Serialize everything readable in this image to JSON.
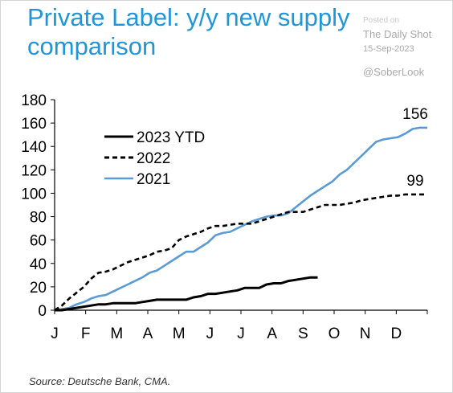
{
  "title": "Private Label: y/y new supply comparison",
  "watermark": {
    "faint": "Posted on",
    "name": "The Daily Shot",
    "date": "15-Sep-2023",
    "handle": "@SoberLook"
  },
  "source": "Source: Deutsche Bank, CMA.",
  "chart_data": {
    "type": "line",
    "title": "Private Label: y/y new supply comparison",
    "xlabel": "",
    "ylabel": "",
    "ylim": [
      0,
      180
    ],
    "yticks": [
      0,
      20,
      40,
      60,
      80,
      100,
      120,
      140,
      160,
      180
    ],
    "month_labels": [
      "J",
      "F",
      "M",
      "A",
      "M",
      "J",
      "J",
      "A",
      "S",
      "O",
      "N",
      "D"
    ],
    "x_unit": "week of year",
    "xlim": [
      1,
      52
    ],
    "grid": false,
    "legend_position": "top-left",
    "end_labels": [
      {
        "series": "2021",
        "text": "156"
      },
      {
        "series": "2022",
        "text": "99"
      }
    ],
    "series": [
      {
        "name": "2023 YTD",
        "color": "#000000",
        "style": "solid",
        "x": [
          1,
          2,
          3,
          4,
          5,
          6,
          7,
          8,
          9,
          10,
          11,
          12,
          13,
          14,
          15,
          16,
          17,
          18,
          19,
          20,
          21,
          22,
          23,
          24,
          25,
          26,
          27,
          28,
          29,
          30,
          31,
          32,
          33,
          34,
          35,
          36,
          37
        ],
        "y": [
          0,
          0,
          1,
          2,
          3,
          4,
          5,
          5,
          6,
          6,
          6,
          6,
          7,
          8,
          9,
          9,
          9,
          9,
          9,
          11,
          12,
          14,
          14,
          15,
          16,
          17,
          19,
          19,
          19,
          22,
          23,
          23,
          25,
          26,
          27,
          28,
          28
        ]
      },
      {
        "name": "2022",
        "color": "#000000",
        "style": "dashed",
        "x": [
          1,
          2,
          3,
          4,
          5,
          6,
          7,
          8,
          9,
          10,
          11,
          12,
          13,
          14,
          15,
          16,
          17,
          18,
          19,
          20,
          21,
          22,
          23,
          24,
          25,
          26,
          27,
          28,
          29,
          30,
          31,
          32,
          33,
          34,
          35,
          36,
          37,
          38,
          39,
          40,
          41,
          42,
          43,
          44,
          45,
          46,
          47,
          48,
          49,
          50,
          51,
          52
        ],
        "y": [
          0,
          4,
          10,
          15,
          20,
          27,
          32,
          33,
          35,
          38,
          41,
          43,
          45,
          47,
          50,
          51,
          53,
          60,
          63,
          65,
          67,
          70,
          72,
          72,
          73,
          74,
          74,
          74,
          76,
          78,
          80,
          82,
          84,
          84,
          84,
          86,
          88,
          90,
          90,
          90,
          91,
          92,
          94,
          95,
          96,
          97,
          98,
          98,
          99,
          99,
          99,
          99
        ]
      },
      {
        "name": "2021",
        "color": "#5b9bd5",
        "style": "solid",
        "x": [
          1,
          2,
          3,
          4,
          5,
          6,
          7,
          8,
          9,
          10,
          11,
          12,
          13,
          14,
          15,
          16,
          17,
          18,
          19,
          20,
          21,
          22,
          23,
          24,
          25,
          26,
          27,
          28,
          29,
          30,
          31,
          32,
          33,
          34,
          35,
          36,
          37,
          38,
          39,
          40,
          41,
          42,
          43,
          44,
          45,
          46,
          47,
          48,
          49,
          50,
          51,
          52
        ],
        "y": [
          0,
          1,
          2,
          5,
          7,
          10,
          12,
          13,
          16,
          19,
          22,
          25,
          28,
          32,
          34,
          38,
          42,
          46,
          50,
          50,
          54,
          58,
          64,
          66,
          67,
          70,
          73,
          76,
          78,
          80,
          81,
          81,
          83,
          88,
          93,
          98,
          102,
          106,
          110,
          116,
          120,
          126,
          132,
          138,
          144,
          146,
          147,
          148,
          151,
          155,
          156,
          156
        ]
      }
    ]
  }
}
